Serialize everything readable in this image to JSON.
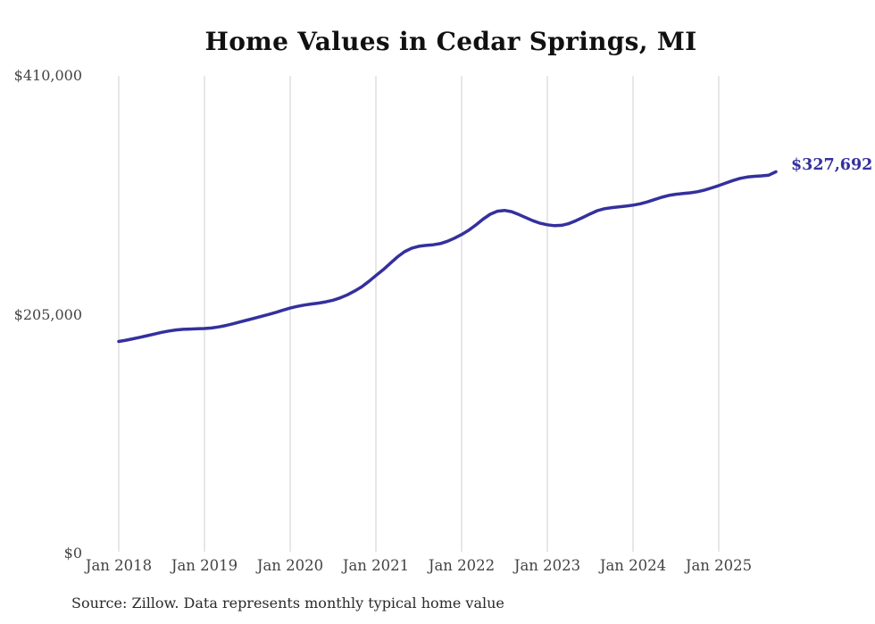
{
  "chart_data": {
    "type": "line",
    "title": "Home Values in Cedar Springs, MI",
    "xlabel": "",
    "ylabel": "",
    "ylim": [
      0,
      410000
    ],
    "x_start": "2018-01",
    "x_end": "2025-09",
    "grid": "vertical-only",
    "legend": "none",
    "line_color": "#34309d",
    "gridline_color": "#cfcfcf",
    "end_label": "$327,692",
    "end_value": 327692,
    "source": "Source: Zillow. Data represents monthly typical home value",
    "y_ticks": [
      {
        "label": "$0",
        "value": 0
      },
      {
        "label": "$205,000",
        "value": 205000
      },
      {
        "label": "$410,000",
        "value": 410000
      }
    ],
    "x_ticks": [
      {
        "label": "Jan 2018",
        "month_index": 0
      },
      {
        "label": "Jan 2019",
        "month_index": 12
      },
      {
        "label": "Jan 2020",
        "month_index": 24
      },
      {
        "label": "Jan 2021",
        "month_index": 36
      },
      {
        "label": "Jan 2022",
        "month_index": 48
      },
      {
        "label": "Jan 2023",
        "month_index": 60
      },
      {
        "label": "Jan 2024",
        "month_index": 72
      },
      {
        "label": "Jan 2025",
        "month_index": 84
      }
    ],
    "series": [
      {
        "name": "Monthly typical home value",
        "values": [
          182000,
          183100,
          184300,
          185600,
          187000,
          188400,
          189800,
          191000,
          191900,
          192400,
          192700,
          192900,
          193100,
          193600,
          194500,
          195700,
          197200,
          198800,
          200400,
          202000,
          203600,
          205200,
          207000,
          208900,
          210700,
          212100,
          213300,
          214200,
          215000,
          216000,
          217400,
          219400,
          222000,
          225200,
          228800,
          233500,
          238600,
          243500,
          249000,
          254500,
          259000,
          262000,
          263700,
          264500,
          265000,
          266000,
          268000,
          270700,
          273800,
          277500,
          282000,
          287000,
          291200,
          293800,
          294500,
          293400,
          291000,
          288300,
          285600,
          283500,
          282200,
          281400,
          281700,
          283200,
          285700,
          288500,
          291500,
          294300,
          296000,
          296900,
          297500,
          298200,
          299000,
          300200,
          301800,
          303800,
          305800,
          307400,
          308400,
          309000,
          309600,
          310500,
          312000,
          313800,
          315800,
          318000,
          320200,
          322000,
          323200,
          323800,
          324200,
          324800,
          327692
        ]
      }
    ]
  }
}
